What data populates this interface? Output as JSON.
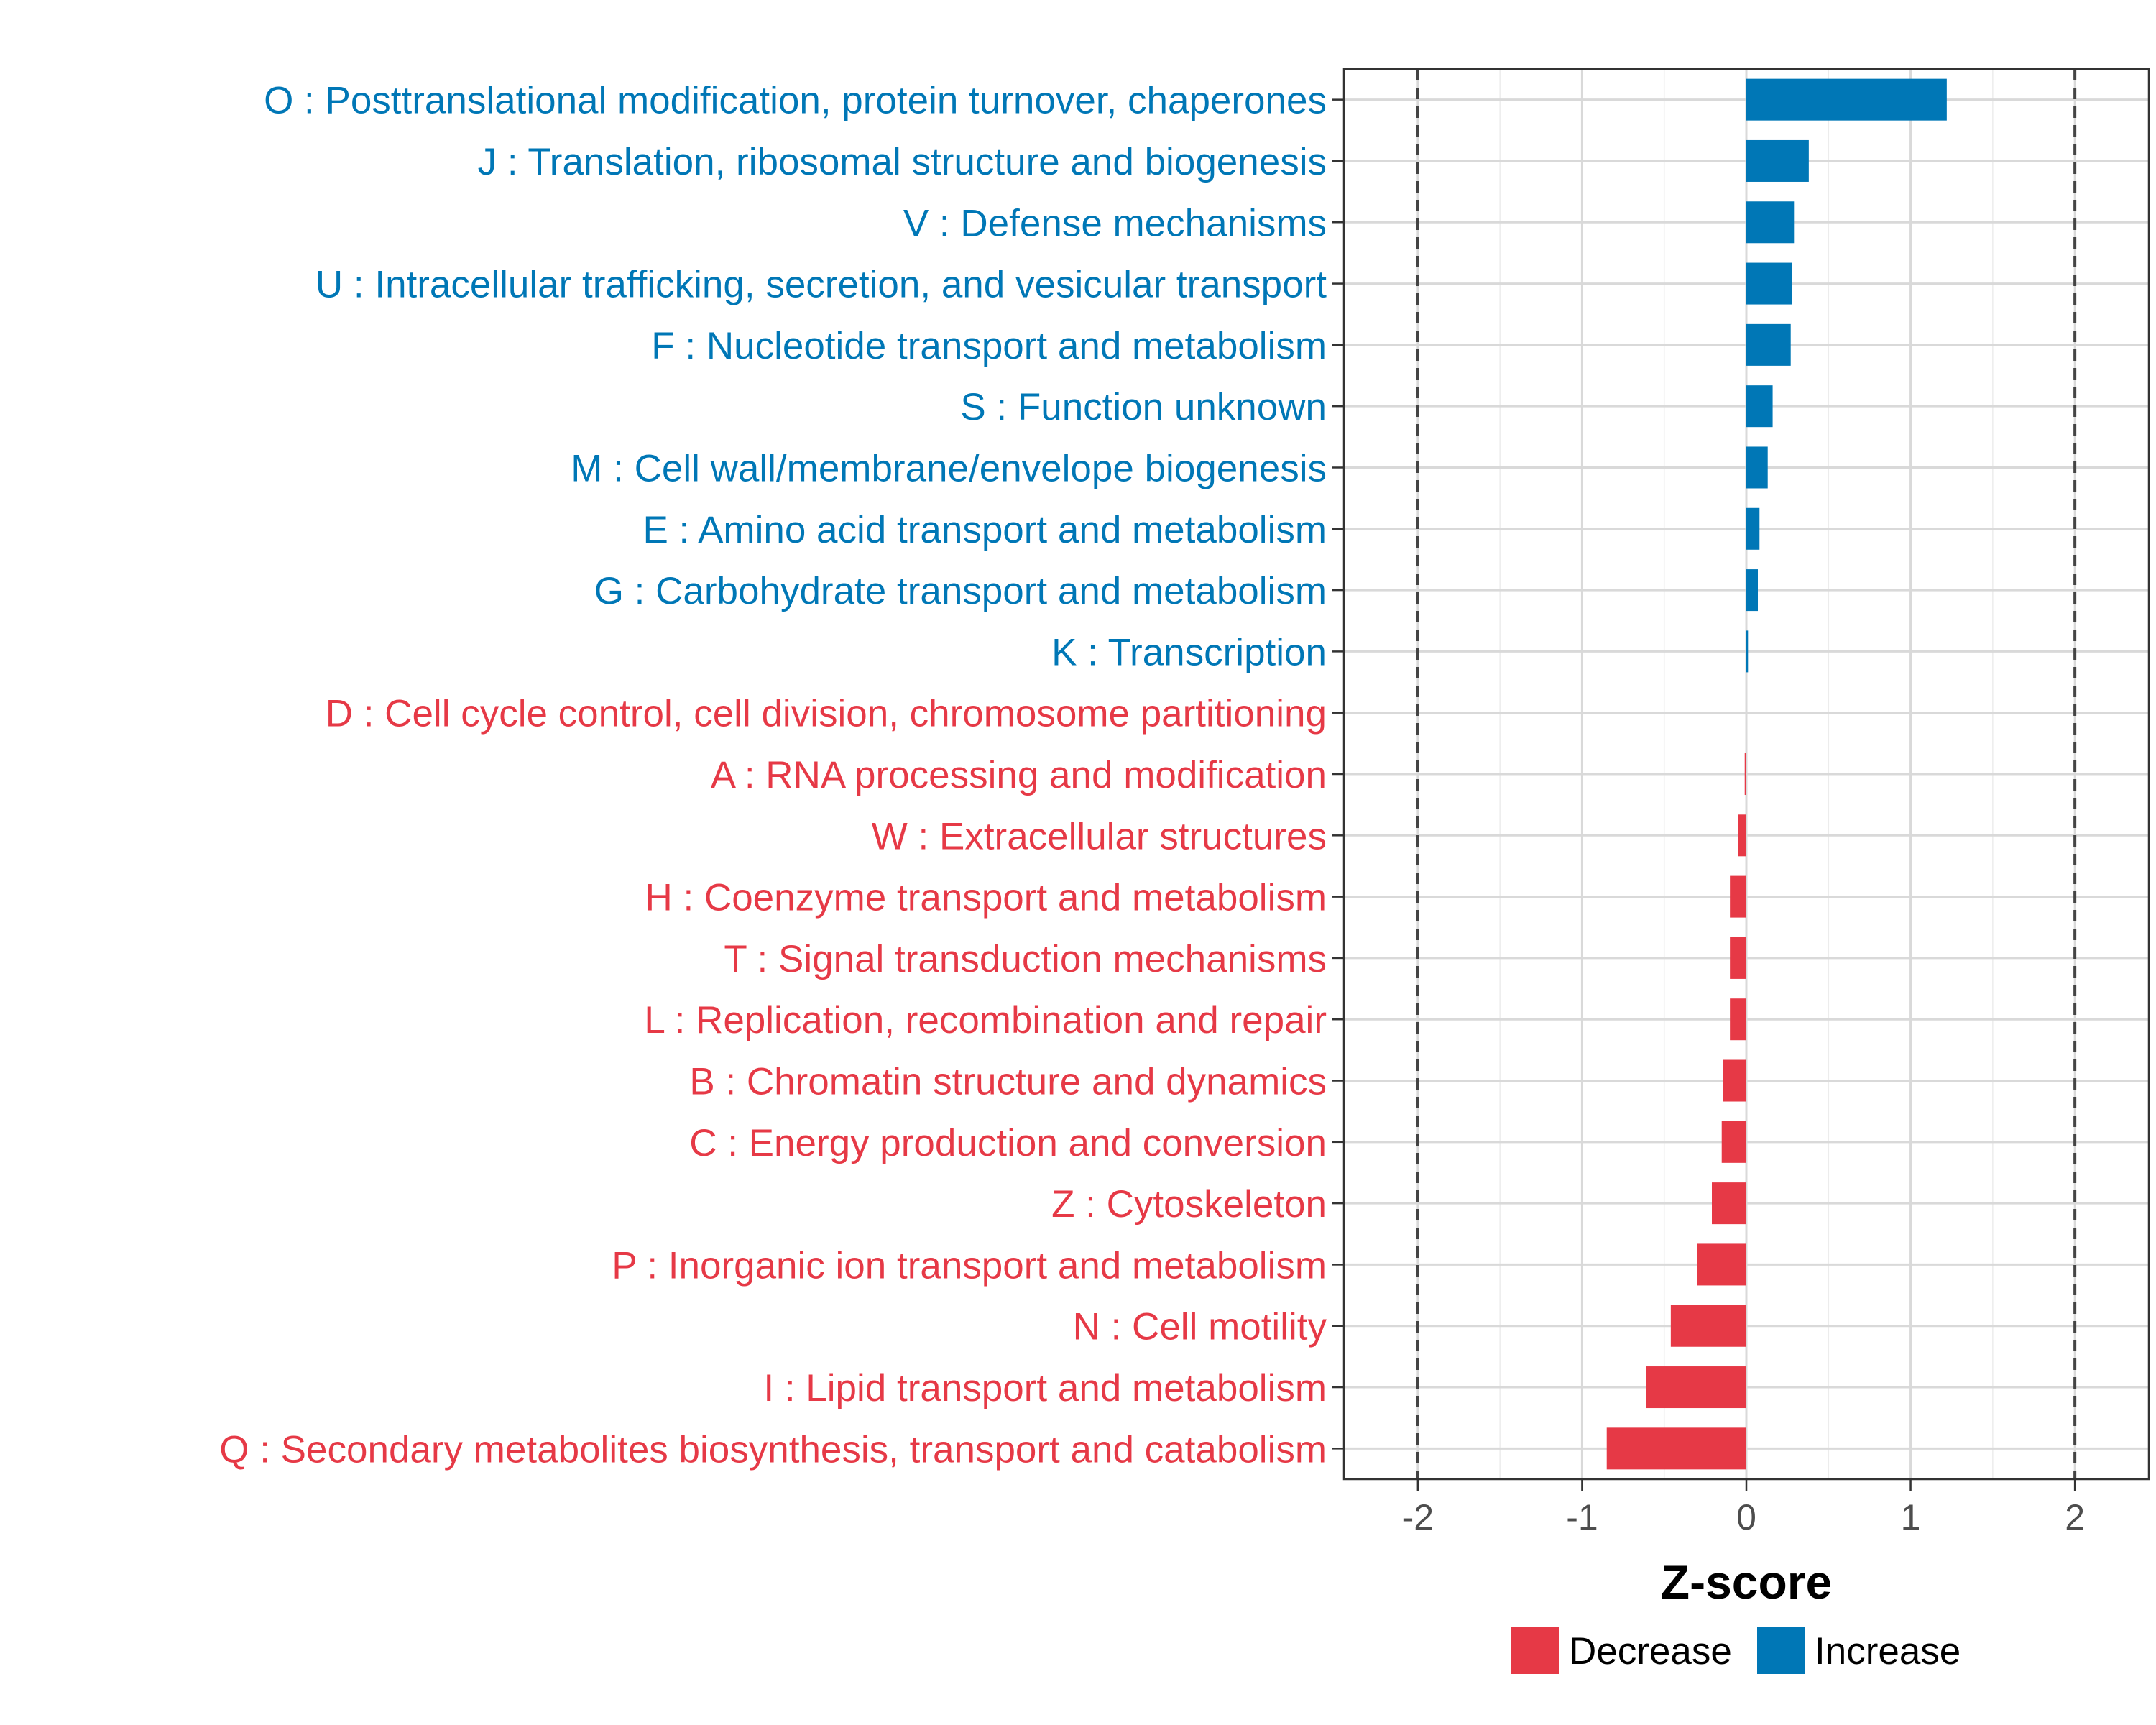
{
  "chart_data": {
    "type": "bar",
    "orientation": "horizontal",
    "xlabel": "Z-score",
    "xlim": [
      -2.45,
      2.45
    ],
    "xticks": [
      -2,
      -1,
      0,
      1,
      2
    ],
    "xtick_labels": [
      "-2",
      "-1",
      "0",
      "1",
      "2"
    ],
    "reference_lines": [
      -2,
      2
    ],
    "grid": true,
    "legend_position": "bottom",
    "colors": {
      "Decrease": "#E63946",
      "Increase": "#0077B6"
    },
    "legend": [
      {
        "label": "Decrease",
        "color": "#E63946"
      },
      {
        "label": "Increase",
        "color": "#0077B6"
      }
    ],
    "categories": [
      {
        "label": "O : Posttranslational modification, protein turnover, chaperones",
        "value": 1.22,
        "group": "Increase"
      },
      {
        "label": "J : Translation, ribosomal structure and biogenesis",
        "value": 0.38,
        "group": "Increase"
      },
      {
        "label": "V : Defense mechanisms",
        "value": 0.29,
        "group": "Increase"
      },
      {
        "label": "U : Intracellular trafficking, secretion, and vesicular transport",
        "value": 0.28,
        "group": "Increase"
      },
      {
        "label": "F : Nucleotide transport and metabolism",
        "value": 0.27,
        "group": "Increase"
      },
      {
        "label": "S : Function unknown",
        "value": 0.16,
        "group": "Increase"
      },
      {
        "label": "M : Cell wall/membrane/envelope biogenesis",
        "value": 0.13,
        "group": "Increase"
      },
      {
        "label": "E : Amino acid transport and metabolism",
        "value": 0.08,
        "group": "Increase"
      },
      {
        "label": "G : Carbohydrate transport and metabolism",
        "value": 0.07,
        "group": "Increase"
      },
      {
        "label": "K : Transcription",
        "value": 0.01,
        "group": "Increase"
      },
      {
        "label": "D : Cell cycle control, cell division, chromosome partitioning",
        "value": 0.0,
        "group": "Decrease"
      },
      {
        "label": "A : RNA processing and modification",
        "value": -0.01,
        "group": "Decrease"
      },
      {
        "label": "W : Extracellular structures",
        "value": -0.05,
        "group": "Decrease"
      },
      {
        "label": "H : Coenzyme transport and metabolism",
        "value": -0.1,
        "group": "Decrease"
      },
      {
        "label": "T : Signal transduction mechanisms",
        "value": -0.1,
        "group": "Decrease"
      },
      {
        "label": "L : Replication, recombination and repair",
        "value": -0.1,
        "group": "Decrease"
      },
      {
        "label": "B : Chromatin structure and dynamics",
        "value": -0.14,
        "group": "Decrease"
      },
      {
        "label": "C : Energy production and conversion",
        "value": -0.15,
        "group": "Decrease"
      },
      {
        "label": "Z : Cytoskeleton",
        "value": -0.21,
        "group": "Decrease"
      },
      {
        "label": "P : Inorganic ion transport and metabolism",
        "value": -0.3,
        "group": "Decrease"
      },
      {
        "label": "N : Cell motility",
        "value": -0.46,
        "group": "Decrease"
      },
      {
        "label": "I : Lipid transport and metabolism",
        "value": -0.61,
        "group": "Decrease"
      },
      {
        "label": "Q : Secondary metabolites biosynthesis, transport and catabolism",
        "value": -0.85,
        "group": "Decrease"
      }
    ]
  }
}
